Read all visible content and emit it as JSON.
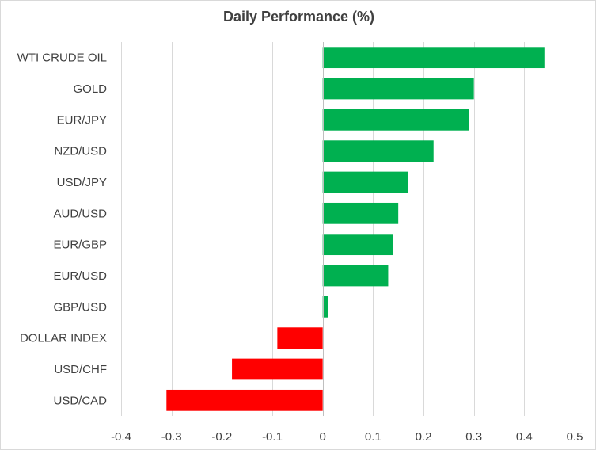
{
  "chart_data": {
    "type": "bar",
    "orientation": "horizontal",
    "title": "Daily Performance  (%)",
    "xlabel": "",
    "ylabel": "",
    "xlim": [
      -0.4,
      0.5
    ],
    "xticks": [
      -0.4,
      -0.3,
      -0.2,
      -0.1,
      0,
      0.1,
      0.2,
      0.3,
      0.4,
      0.5
    ],
    "xtick_labels": [
      "-0.4",
      "-0.3",
      "-0.2",
      "-0.1",
      "0",
      "0.1",
      "0.2",
      "0.3",
      "0.4",
      "0.5"
    ],
    "grid": "vertical",
    "legend": "none",
    "categories": [
      "WTI CRUDE OIL",
      "GOLD",
      "EUR/JPY",
      "NZD/USD",
      "USD/JPY",
      "AUD/USD",
      "EUR/GBP",
      "EUR/USD",
      "GBP/USD",
      "DOLLAR INDEX",
      "USD/CHF",
      "USD/CAD"
    ],
    "values": [
      0.44,
      0.3,
      0.29,
      0.22,
      0.17,
      0.15,
      0.14,
      0.13,
      0.01,
      -0.09,
      -0.18,
      -0.31
    ],
    "colors": {
      "positive": "#00b050",
      "negative": "#ff0000",
      "gridline": "#d9d9d9",
      "text": "#404040"
    }
  }
}
